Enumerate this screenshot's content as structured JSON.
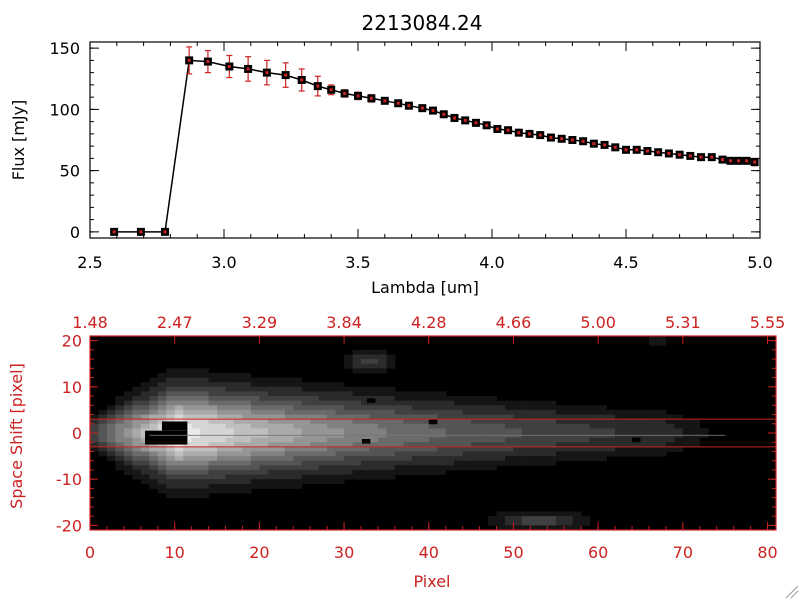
{
  "colors": {
    "axis": "#000000",
    "accent": "#cc2222",
    "errorbar": "#cc2222",
    "marker": "#000000"
  },
  "chart_data": [
    {
      "type": "scatter",
      "title": "2213084.24",
      "xlabel": "Lambda [um]",
      "ylabel": "Flux [mJy]",
      "xlim": [
        2.5,
        5.0
      ],
      "ylim": [
        -5,
        155
      ],
      "xticks": [
        "2.5",
        "3.0",
        "3.5",
        "4.0",
        "4.5",
        "5.0"
      ],
      "yticks": [
        "0",
        "50",
        "100",
        "150"
      ],
      "x": [
        2.59,
        2.69,
        2.78,
        2.87,
        2.94,
        3.02,
        3.09,
        3.16,
        3.23,
        3.29,
        3.35,
        3.4,
        3.45,
        3.5,
        3.55,
        3.6,
        3.65,
        3.69,
        3.74,
        3.78,
        3.82,
        3.86,
        3.9,
        3.94,
        3.98,
        4.02,
        4.06,
        4.1,
        4.14,
        4.18,
        4.22,
        4.26,
        4.3,
        4.34,
        4.38,
        4.42,
        4.46,
        4.5,
        4.54,
        4.58,
        4.62,
        4.66,
        4.7,
        4.74,
        4.78,
        4.82,
        4.86,
        4.89,
        4.92,
        4.95,
        4.98
      ],
      "y": [
        0,
        0,
        0,
        140,
        139,
        135,
        133,
        130,
        128,
        124,
        119,
        116,
        113,
        111,
        109,
        107,
        105,
        103,
        101,
        99,
        96,
        93,
        91,
        89,
        87,
        84,
        83,
        81,
        80,
        79,
        77,
        76,
        75,
        74,
        72,
        71,
        69,
        67,
        67,
        66,
        65,
        64,
        63,
        62,
        61,
        61,
        59,
        58,
        58,
        58,
        57
      ],
      "yerr": [
        0,
        0,
        0,
        11,
        9,
        9,
        10,
        10,
        10,
        9,
        8,
        4,
        3,
        3,
        3,
        2,
        2,
        2,
        2,
        2,
        2,
        2,
        2,
        2,
        2,
        2,
        2,
        2,
        2,
        2,
        2,
        2,
        2,
        2,
        2,
        2,
        2,
        2,
        2,
        2,
        2,
        2,
        2,
        2,
        2,
        2,
        2,
        2,
        2,
        2,
        3
      ],
      "grid": false
    },
    {
      "type": "heatmap",
      "xlabel": "Pixel",
      "ylabel": "Space Shift [pixel]",
      "xlim": [
        0,
        81
      ],
      "ylim": [
        -21,
        21
      ],
      "xticks": [
        "0",
        "10",
        "20",
        "30",
        "40",
        "50",
        "60",
        "70",
        "80"
      ],
      "yticks": [
        "-20",
        "-10",
        "0",
        "10",
        "20"
      ],
      "top_ticks": [
        "1.48",
        "2.47",
        "3.29",
        "3.84",
        "4.28",
        "4.66",
        "5.00",
        "5.31",
        "5.55"
      ],
      "extraction_window": [
        -3,
        3
      ],
      "colormap": "grayscale"
    }
  ]
}
